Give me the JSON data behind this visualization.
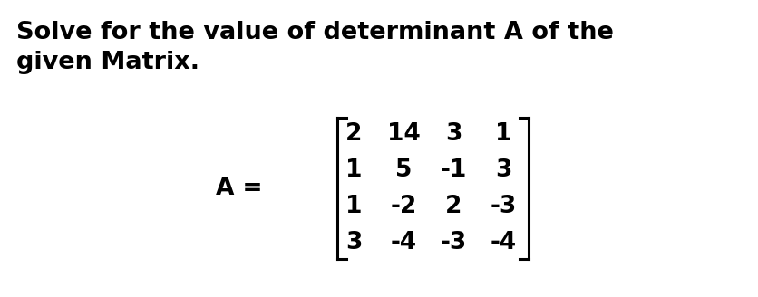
{
  "title_line1": "Solve for the value of determinant A of the",
  "title_line2": "given Matrix.",
  "matrix": [
    [
      "2",
      "14",
      "3",
      "1"
    ],
    [
      "1",
      "5",
      "-1",
      "3"
    ],
    [
      "1",
      "-2",
      "2",
      "-3"
    ],
    [
      "3",
      "-4",
      "-3",
      "-4"
    ]
  ],
  "label": "A =",
  "bg_color": "#ffffff",
  "text_color": "#000000",
  "title_fontsize": 19.5,
  "matrix_fontsize": 19,
  "label_fontsize": 19,
  "figsize": [
    8.36,
    3.28
  ],
  "dpi": 100
}
